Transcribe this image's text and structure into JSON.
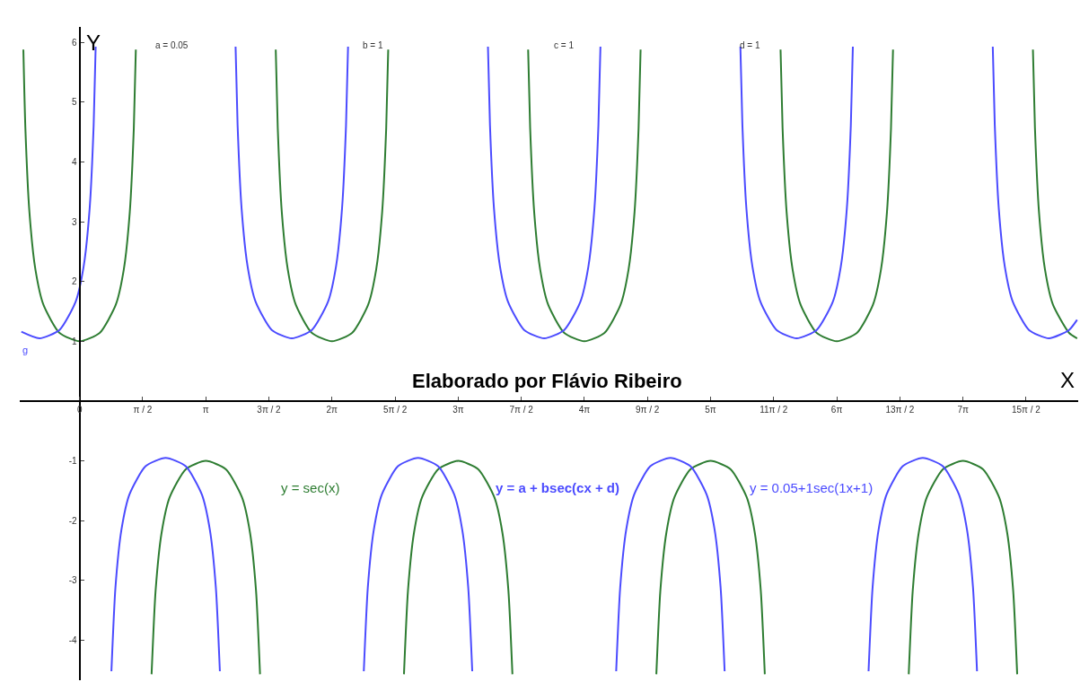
{
  "chart_data": {
    "type": "line",
    "xlabel": "X",
    "ylabel": "Y",
    "xlim": [
      -1.49,
      24.86
    ],
    "ylim": [
      -4.67,
      6.26
    ],
    "xticks": [
      {
        "value": 0,
        "label": "0"
      },
      {
        "value": 1.571,
        "label": "π / 2"
      },
      {
        "value": 3.142,
        "label": "π"
      },
      {
        "value": 4.712,
        "label": "3π / 2"
      },
      {
        "value": 6.283,
        "label": "2π"
      },
      {
        "value": 7.854,
        "label": "5π / 2"
      },
      {
        "value": 9.425,
        "label": "3π"
      },
      {
        "value": 10.996,
        "label": "7π / 2"
      },
      {
        "value": 12.566,
        "label": "4π"
      },
      {
        "value": 14.137,
        "label": "9π / 2"
      },
      {
        "value": 15.708,
        "label": "5π"
      },
      {
        "value": 17.279,
        "label": "11π / 2"
      },
      {
        "value": 18.85,
        "label": "6π"
      },
      {
        "value": 20.42,
        "label": "13π / 2"
      },
      {
        "value": 21.991,
        "label": "7π"
      },
      {
        "value": 23.562,
        "label": "15π / 2"
      }
    ],
    "yticks": [
      -4,
      -3,
      -2,
      -1,
      1,
      2,
      3,
      4,
      5,
      6
    ],
    "legend": false,
    "marker": "none",
    "line_style": "solid",
    "annotations": [
      "Elaborado por Flávio Ribeiro",
      "y = a + bsec(cx + d)",
      "a = 0.05",
      "b = 1",
      "c = 1",
      "d = 1",
      "g"
    ],
    "series": [
      {
        "name": "y = sec(x)",
        "color": "#2e7d32",
        "x": [
          -1.4,
          -1.35,
          -1.25,
          -1.1,
          -0.9,
          -0.5,
          0,
          0.5,
          0.9,
          1.1,
          1.25,
          1.35,
          1.4,
          1.6,
          1.792,
          1.892,
          2.042,
          2.242,
          2.642,
          3.142,
          3.642,
          4.042,
          4.242,
          4.392,
          4.492,
          4.7,
          4.883,
          4.933,
          5.033,
          5.183,
          5.383,
          5.783,
          6.283,
          6.783,
          7.183,
          7.383,
          7.533,
          7.633,
          7.683,
          7.9,
          8.075,
          8.175,
          8.325,
          8.525,
          8.925,
          9.425,
          9.925,
          10.325,
          10.525,
          10.675,
          10.775,
          11.0,
          11.166,
          11.216,
          11.316,
          11.466,
          11.666,
          12.066,
          12.566,
          13.066,
          13.466,
          13.666,
          13.816,
          13.916,
          13.966,
          14.2,
          14.358,
          14.458,
          14.608,
          14.808,
          15.208,
          15.708,
          16.208,
          16.608,
          16.808,
          16.958,
          17.058,
          17.3,
          17.45,
          17.5,
          17.6,
          17.75,
          17.95,
          18.35,
          18.85,
          19.35,
          19.75,
          19.95,
          20.1,
          20.2,
          20.25,
          20.45,
          20.641,
          20.741,
          20.891,
          21.091,
          21.491,
          21.991,
          22.491,
          22.891,
          23.091,
          23.241,
          23.341,
          23.55,
          23.733,
          23.783,
          23.883,
          24.033,
          24.233,
          24.633,
          24.833
        ],
        "values": [
          5.88,
          4.57,
          3.17,
          2.2,
          1.61,
          1.14,
          1,
          1.14,
          1.61,
          2.2,
          3.17,
          4.57,
          5.88,
          null,
          -4.57,
          -3.17,
          -2.2,
          -1.61,
          -1.14,
          -1,
          -1.14,
          -1.61,
          -2.2,
          -3.17,
          -4.57,
          null,
          5.88,
          4.57,
          3.17,
          2.2,
          1.61,
          1.14,
          1,
          1.14,
          1.61,
          2.2,
          3.17,
          4.57,
          5.88,
          null,
          -4.57,
          -3.17,
          -2.2,
          -1.61,
          -1.14,
          -1,
          -1.14,
          -1.61,
          -2.2,
          -3.17,
          -4.57,
          null,
          5.88,
          4.57,
          3.17,
          2.2,
          1.61,
          1.14,
          1,
          1.14,
          1.61,
          2.2,
          3.17,
          4.57,
          5.88,
          null,
          -4.57,
          -3.17,
          -2.2,
          -1.61,
          -1.14,
          -1,
          -1.14,
          -1.61,
          -2.2,
          -3.17,
          -4.57,
          null,
          5.88,
          4.57,
          3.17,
          2.2,
          1.61,
          1.14,
          1,
          1.14,
          1.61,
          2.2,
          3.17,
          4.57,
          5.88,
          null,
          -4.57,
          -3.17,
          -2.2,
          -1.61,
          -1.14,
          -1,
          -1.14,
          -1.61,
          -2.2,
          -3.17,
          -4.57,
          null,
          5.88,
          4.57,
          3.17,
          2.2,
          1.61,
          1.14,
          1.05
        ]
      },
      {
        "name": "y = 0.05+1sec(1x+1)",
        "color": "#4b4bff",
        "x": [
          -1.45,
          -1.0,
          -0.5,
          -0.1,
          0.1,
          0.25,
          0.35,
          0.4,
          0.6,
          0.792,
          0.892,
          1.042,
          1.242,
          1.642,
          2.142,
          2.642,
          3.042,
          3.242,
          3.392,
          3.492,
          3.7,
          3.883,
          3.933,
          4.033,
          4.183,
          4.383,
          4.783,
          5.283,
          5.783,
          6.183,
          6.383,
          6.533,
          6.633,
          6.683,
          6.9,
          7.075,
          7.175,
          7.325,
          7.525,
          7.925,
          8.425,
          8.925,
          9.325,
          9.525,
          9.675,
          9.775,
          10.0,
          10.166,
          10.216,
          10.316,
          10.466,
          10.666,
          11.066,
          11.566,
          12.066,
          12.466,
          12.666,
          12.816,
          12.916,
          12.966,
          13.2,
          13.358,
          13.458,
          13.608,
          13.808,
          14.208,
          14.708,
          15.208,
          15.608,
          15.808,
          15.958,
          16.058,
          16.3,
          16.45,
          16.5,
          16.6,
          16.75,
          16.95,
          17.35,
          17.85,
          18.35,
          18.75,
          18.95,
          19.1,
          19.2,
          19.25,
          19.45,
          19.641,
          19.741,
          19.891,
          20.091,
          20.491,
          20.991,
          21.491,
          21.891,
          22.091,
          22.241,
          22.341,
          22.55,
          22.733,
          22.783,
          22.883,
          23.033,
          23.233,
          23.633,
          24.133,
          24.633,
          24.833
        ],
        "values": [
          1.16,
          1.05,
          1.19,
          1.66,
          2.25,
          3.22,
          4.62,
          5.93,
          null,
          -4.52,
          -3.12,
          -2.15,
          -1.56,
          -1.09,
          -0.95,
          -1.09,
          -1.56,
          -2.15,
          -3.12,
          -4.52,
          null,
          5.93,
          4.62,
          3.22,
          2.25,
          1.66,
          1.19,
          1.05,
          1.19,
          1.66,
          2.25,
          3.22,
          4.62,
          5.93,
          null,
          -4.52,
          -3.12,
          -2.15,
          -1.56,
          -1.09,
          -0.95,
          -1.09,
          -1.56,
          -2.15,
          -3.12,
          -4.52,
          null,
          5.93,
          4.62,
          3.22,
          2.25,
          1.66,
          1.19,
          1.05,
          1.19,
          1.66,
          2.25,
          3.22,
          4.62,
          5.93,
          null,
          -4.52,
          -3.12,
          -2.15,
          -1.56,
          -1.09,
          -0.95,
          -1.09,
          -1.56,
          -2.15,
          -3.12,
          -4.52,
          null,
          5.93,
          4.62,
          3.22,
          2.25,
          1.66,
          1.19,
          1.05,
          1.19,
          1.66,
          2.25,
          3.22,
          4.62,
          5.93,
          null,
          -4.52,
          -3.12,
          -2.15,
          -1.56,
          -1.09,
          -0.95,
          -1.09,
          -1.56,
          -2.15,
          -3.12,
          -4.52,
          null,
          5.93,
          4.62,
          3.22,
          2.25,
          1.66,
          1.19,
          1.05,
          1.19,
          1.36
        ]
      }
    ]
  }
}
